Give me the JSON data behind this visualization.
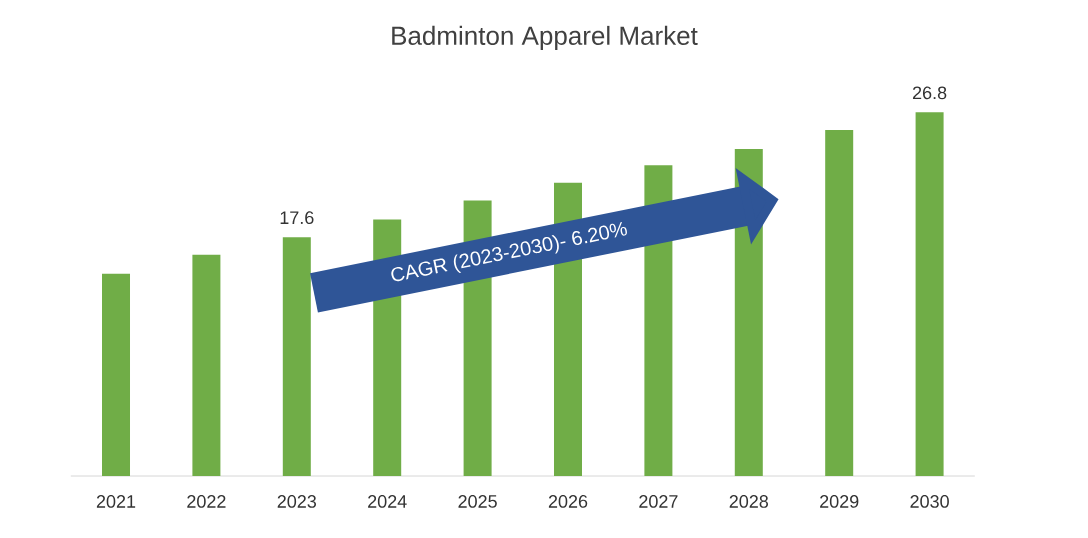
{
  "chart_data": {
    "type": "bar",
    "title": "Badminton Apparel Market",
    "categories": [
      "2021",
      "2022",
      "2023",
      "2024",
      "2025",
      "2026",
      "2027",
      "2028",
      "2029",
      "2030"
    ],
    "values": [
      14.9,
      16.3,
      17.6,
      18.9,
      20.3,
      21.6,
      22.9,
      24.1,
      25.5,
      26.8
    ],
    "value_labels": [
      null,
      null,
      "17.6",
      null,
      null,
      null,
      null,
      null,
      null,
      "26.8"
    ],
    "color": "#70ad47",
    "annotations": [
      "CAGR (2023-2030)- 6.20%"
    ]
  }
}
